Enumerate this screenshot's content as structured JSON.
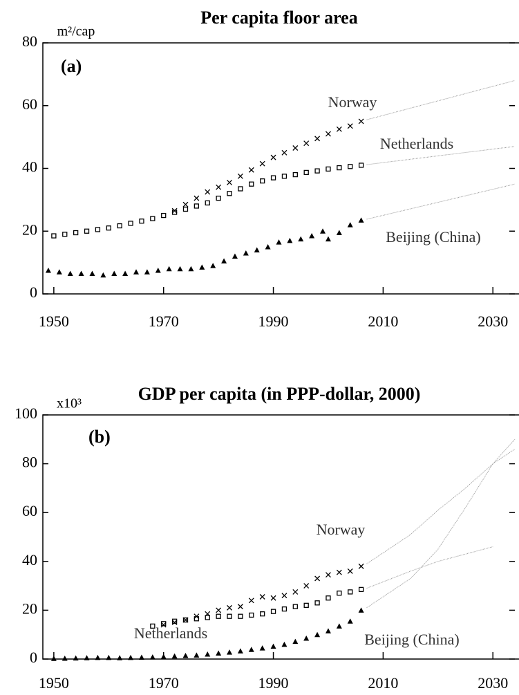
{
  "chart_data": [
    {
      "type": "line",
      "title": "Per capita floor area",
      "panel_label": "(a)",
      "unit_label": "m²/cap",
      "xlim": [
        1948,
        2034
      ],
      "xticks": [
        1950,
        1970,
        1990,
        2010,
        2030
      ],
      "ylim": [
        0,
        80
      ],
      "yticks": [
        0,
        20,
        40,
        60,
        80
      ],
      "grid": false,
      "series": [
        {
          "name": "Norway",
          "color": "#000000",
          "marker": "cross",
          "x": [
            1972,
            1974,
            1976,
            1978,
            1980,
            1982,
            1984,
            1986,
            1988,
            1990,
            1992,
            1994,
            1996,
            1998,
            2000,
            2002,
            2004,
            2006
          ],
          "values": [
            26.5,
            28.5,
            30.5,
            32.5,
            34,
            35.5,
            37.5,
            39.5,
            41.5,
            43.5,
            45,
            46.5,
            48,
            49.5,
            51,
            52.5,
            53.5,
            55
          ],
          "projection": {
            "x": [
              2007,
              2034
            ],
            "values": [
              55.5,
              68
            ]
          }
        },
        {
          "name": "Netherlands",
          "color": "#000000",
          "marker": "square",
          "x": [
            1950,
            1952,
            1954,
            1956,
            1958,
            1960,
            1962,
            1964,
            1966,
            1968,
            1970,
            1972,
            1974,
            1976,
            1978,
            1980,
            1982,
            1984,
            1986,
            1988,
            1990,
            1992,
            1994,
            1996,
            1998,
            2000,
            2002,
            2004,
            2006
          ],
          "values": [
            18.5,
            19,
            19.5,
            20,
            20.5,
            21,
            21.7,
            22.5,
            23.2,
            24,
            25,
            26,
            27,
            28,
            29,
            30.5,
            32,
            33.5,
            35,
            36,
            37,
            37.5,
            38,
            38.7,
            39.2,
            39.8,
            40.2,
            40.6,
            41
          ],
          "projection": {
            "x": [
              2007,
              2034
            ],
            "values": [
              41.2,
              47
            ]
          }
        },
        {
          "name": "Beijing (China)",
          "color": "#000000",
          "marker": "triangle",
          "x": [
            1949,
            1951,
            1953,
            1955,
            1957,
            1959,
            1961,
            1963,
            1965,
            1967,
            1969,
            1971,
            1973,
            1975,
            1977,
            1979,
            1981,
            1983,
            1985,
            1987,
            1989,
            1991,
            1993,
            1995,
            1997,
            1999,
            2000,
            2002,
            2004,
            2006
          ],
          "values": [
            7.5,
            7,
            6.5,
            6.5,
            6.5,
            6,
            6.5,
            6.5,
            7,
            7,
            7.5,
            8,
            8,
            8,
            8.5,
            9,
            10.5,
            12,
            13,
            14,
            15,
            16.5,
            17,
            17.5,
            18.5,
            20,
            17.5,
            19.5,
            22,
            23.5
          ],
          "projection": {
            "x": [
              2007,
              2034
            ],
            "values": [
              23.8,
              35
            ]
          }
        }
      ]
    },
    {
      "type": "line",
      "title": "GDP per capita (in PPP-dollar, 2000)",
      "panel_label": "(b)",
      "unit_label": "x10³",
      "xlim": [
        1948,
        2034
      ],
      "xticks": [
        1950,
        1970,
        1990,
        2010,
        2030
      ],
      "ylim": [
        0,
        100
      ],
      "yticks": [
        0,
        20,
        40,
        60,
        80,
        100
      ],
      "grid": false,
      "series": [
        {
          "name": "Norway",
          "color": "#000000",
          "marker": "cross",
          "x": [
            1970,
            1972,
            1974,
            1976,
            1978,
            1980,
            1982,
            1984,
            1986,
            1988,
            1990,
            1992,
            1994,
            1996,
            1998,
            2000,
            2002,
            2004,
            2006
          ],
          "values": [
            14,
            15,
            16,
            17.5,
            18.5,
            20,
            21,
            21.5,
            24,
            25.5,
            25,
            26,
            27.5,
            30,
            33,
            34.5,
            35.5,
            36,
            38
          ],
          "projection": {
            "x": [
              2007,
              2015,
              2020,
              2025,
              2030,
              2034
            ],
            "values": [
              39,
              51,
              61,
              70,
              80,
              86
            ]
          }
        },
        {
          "name": "Netherlands",
          "color": "#000000",
          "marker": "square",
          "x": [
            1968,
            1970,
            1972,
            1974,
            1976,
            1978,
            1980,
            1982,
            1984,
            1986,
            1988,
            1990,
            1992,
            1994,
            1996,
            1998,
            2000,
            2002,
            2004,
            2006
          ],
          "values": [
            13.5,
            14.5,
            15.5,
            16,
            16.5,
            17,
            17.5,
            17.5,
            17.5,
            18,
            18.5,
            19.5,
            20.5,
            21.5,
            22,
            23,
            25,
            27,
            27.5,
            28.5
          ],
          "projection": {
            "x": [
              2007,
              2015,
              2020,
              2030
            ],
            "values": [
              29,
              36,
              40,
              46
            ]
          }
        },
        {
          "name": "Beijing (China)",
          "color": "#000000",
          "marker": "triangle",
          "x": [
            1950,
            1952,
            1954,
            1956,
            1958,
            1960,
            1962,
            1964,
            1966,
            1968,
            1970,
            1972,
            1974,
            1976,
            1978,
            1980,
            1982,
            1984,
            1986,
            1988,
            1990,
            1992,
            1994,
            1996,
            1998,
            2000,
            2002,
            2004,
            2006
          ],
          "values": [
            0.2,
            0.3,
            0.4,
            0.5,
            0.6,
            0.6,
            0.5,
            0.6,
            0.7,
            0.8,
            1,
            1.2,
            1.4,
            1.6,
            2,
            2.4,
            2.8,
            3.3,
            3.9,
            4.5,
            5.2,
            6,
            7.2,
            8.5,
            10,
            11.5,
            13.5,
            15.5,
            20
          ],
          "projection": {
            "x": [
              2007,
              2015,
              2020,
              2025,
              2030,
              2034
            ],
            "values": [
              21,
              33,
              45,
              62,
              80,
              90
            ]
          }
        }
      ]
    }
  ]
}
